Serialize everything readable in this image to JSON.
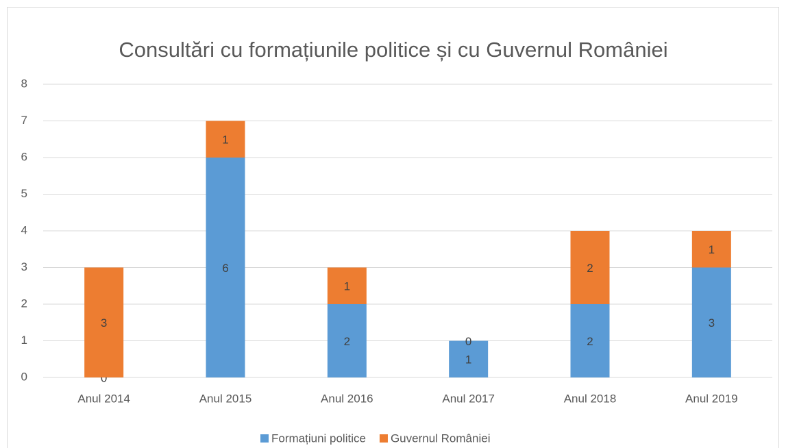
{
  "chart_data": {
    "type": "bar",
    "stacked": true,
    "title": "Consultări cu formațiunile politice și cu Guvernul României",
    "categories": [
      "Anul 2014",
      "Anul 2015",
      "Anul 2016",
      "Anul 2017",
      "Anul 2018",
      "Anul 2019"
    ],
    "series": [
      {
        "name": "Formațiuni politice",
        "color": "#5b9bd5",
        "values": [
          0,
          6,
          2,
          1,
          2,
          3
        ]
      },
      {
        "name": "Guvernul României",
        "color": "#ed7d31",
        "values": [
          3,
          1,
          1,
          0,
          2,
          1
        ]
      }
    ],
    "ylim": [
      0,
      8
    ],
    "yticks": [
      0,
      1,
      2,
      3,
      4,
      5,
      6,
      7,
      8
    ],
    "grid": true,
    "legend": "bottom"
  }
}
